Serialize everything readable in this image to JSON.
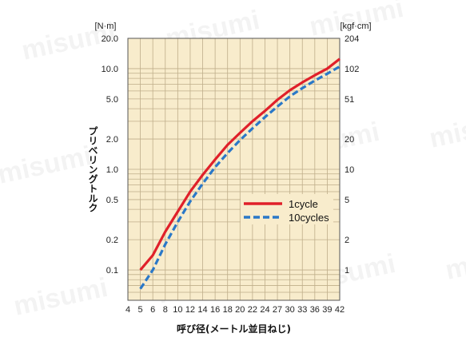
{
  "watermark_text": "misumi",
  "chart_data": {
    "type": "line",
    "title": "",
    "y_left_unit": "[N·m]",
    "y_right_unit": "[kgf·cm]",
    "ylabel": "プリベリングトルク",
    "xlabel": "呼び径(メートル並目ねじ)",
    "y_scale": "log",
    "ylim": [
      0.05,
      20.0
    ],
    "grid": true,
    "legend_position": "right-middle",
    "x_ticks": [
      "4",
      "5",
      "6",
      "8",
      "10",
      "12",
      "14",
      "16",
      "18",
      "20",
      "22",
      "24",
      "27",
      "30",
      "33",
      "36",
      "39",
      "42"
    ],
    "y_left_ticks": [
      {
        "value": 20.0,
        "label": "20.0"
      },
      {
        "value": 10.0,
        "label": "10.0"
      },
      {
        "value": 5.0,
        "label": "5.0"
      },
      {
        "value": 2.0,
        "label": "2.0"
      },
      {
        "value": 1.0,
        "label": "1.0"
      },
      {
        "value": 0.5,
        "label": "0.5"
      },
      {
        "value": 0.2,
        "label": "0.2"
      },
      {
        "value": 0.1,
        "label": "0.1"
      }
    ],
    "y_right_ticks": [
      {
        "value": 20.0,
        "label": "204"
      },
      {
        "value": 10.0,
        "label": "102"
      },
      {
        "value": 5.0,
        "label": "51"
      },
      {
        "value": 2.0,
        "label": "20"
      },
      {
        "value": 1.0,
        "label": "10"
      },
      {
        "value": 0.5,
        "label": "5"
      },
      {
        "value": 0.2,
        "label": "2"
      },
      {
        "value": 0.1,
        "label": "1"
      }
    ],
    "x": [
      5,
      6,
      8,
      10,
      12,
      14,
      16,
      18,
      20,
      22,
      24,
      27,
      30,
      33,
      36,
      39,
      42
    ],
    "series": [
      {
        "name": "1cycle",
        "color": "#e0202a",
        "dash": false,
        "values": [
          0.1,
          0.14,
          0.24,
          0.38,
          0.6,
          0.88,
          1.25,
          1.75,
          2.3,
          3.0,
          3.8,
          4.9,
          6.1,
          7.3,
          8.6,
          10.0,
          12.5
        ]
      },
      {
        "name": "10cycles",
        "color": "#2a78c8",
        "dash": true,
        "values": [
          0.065,
          0.1,
          0.18,
          0.3,
          0.48,
          0.72,
          1.05,
          1.45,
          1.95,
          2.55,
          3.3,
          4.2,
          5.3,
          6.4,
          7.6,
          8.9,
          10.5
        ]
      }
    ]
  }
}
